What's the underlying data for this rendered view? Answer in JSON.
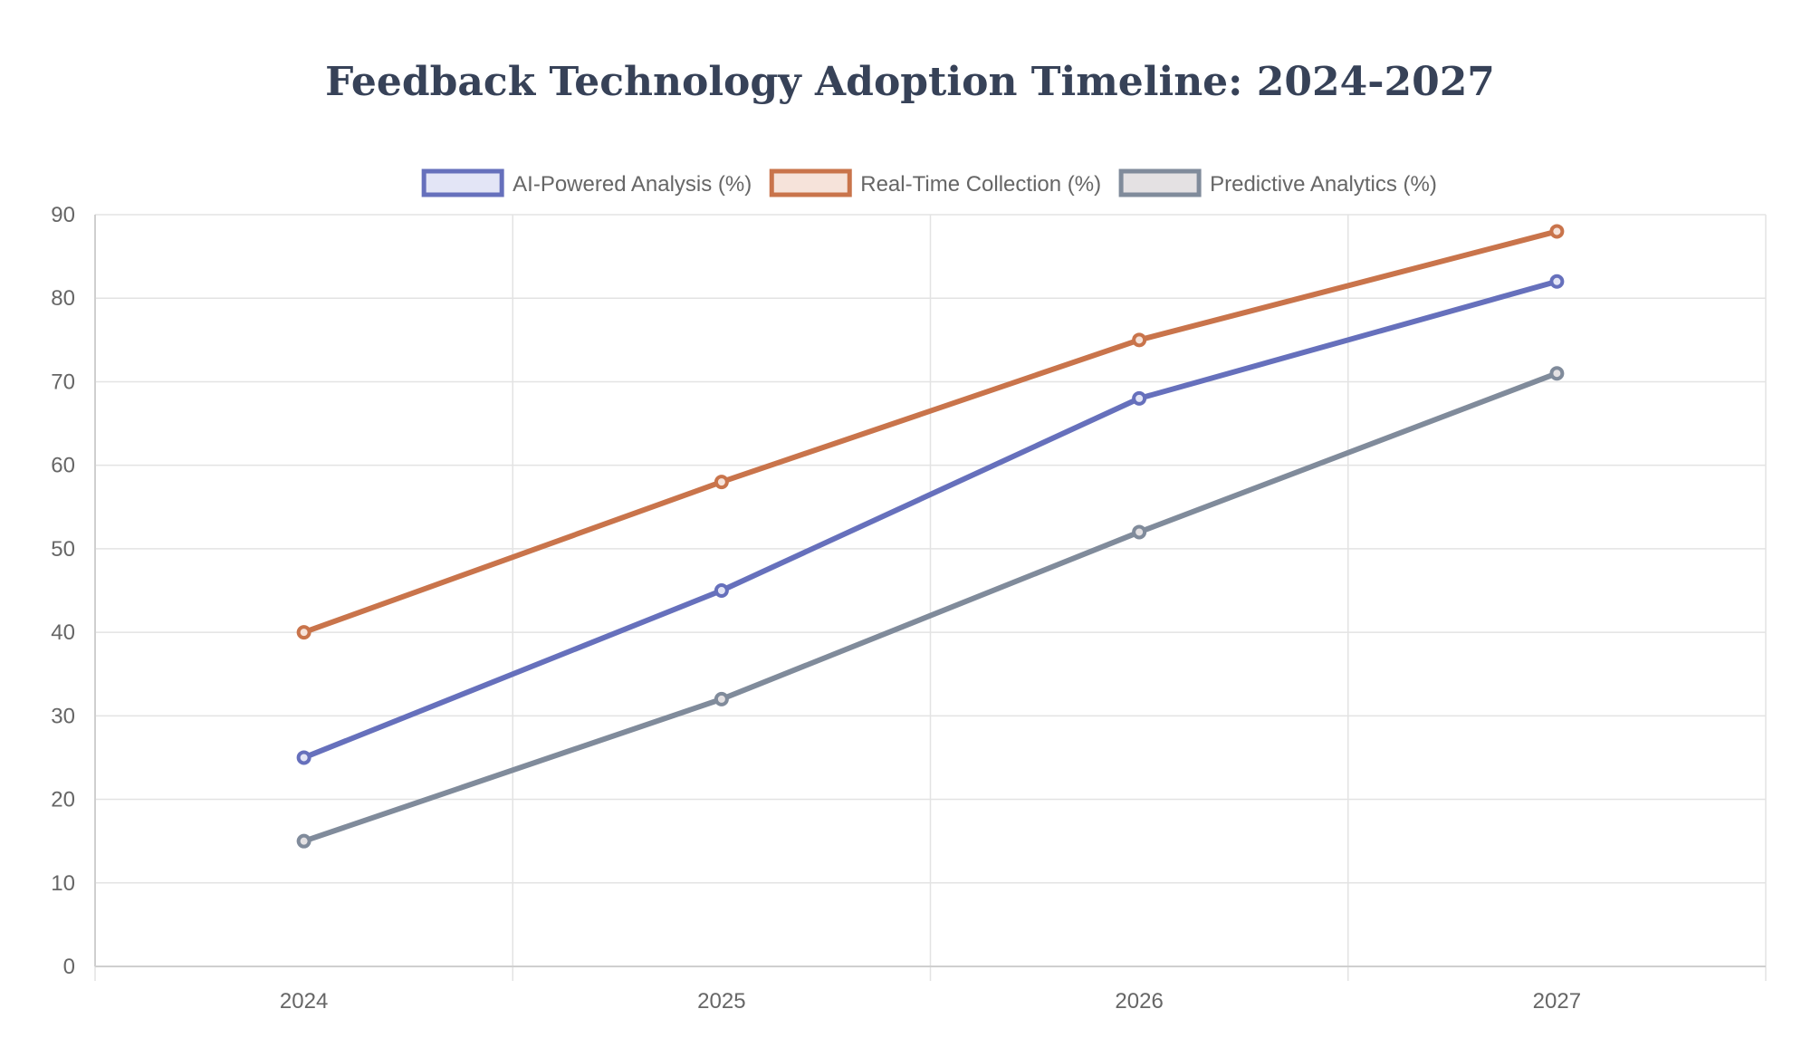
{
  "chart_data": {
    "type": "line",
    "title": "Feedback Technology Adoption Timeline: 2024-2027",
    "categories": [
      "2024",
      "2025",
      "2026",
      "2027"
    ],
    "ylim": [
      0,
      90
    ],
    "yticks": [
      0,
      10,
      20,
      30,
      40,
      50,
      60,
      70,
      80,
      90
    ],
    "grid": true,
    "legend_position": "top",
    "series": [
      {
        "name": "AI-Powered Analysis (%)",
        "values": [
          25,
          45,
          68,
          82
        ],
        "color": "#6670bc",
        "fill": "#e3e5f6"
      },
      {
        "name": "Real-Time Collection (%)",
        "values": [
          40,
          58,
          75,
          88
        ],
        "color": "#c9744b",
        "fill": "#f6e3da"
      },
      {
        "name": "Predictive Analytics (%)",
        "values": [
          15,
          32,
          52,
          71
        ],
        "color": "#808b9b",
        "fill": "#e4e1e3"
      }
    ]
  }
}
